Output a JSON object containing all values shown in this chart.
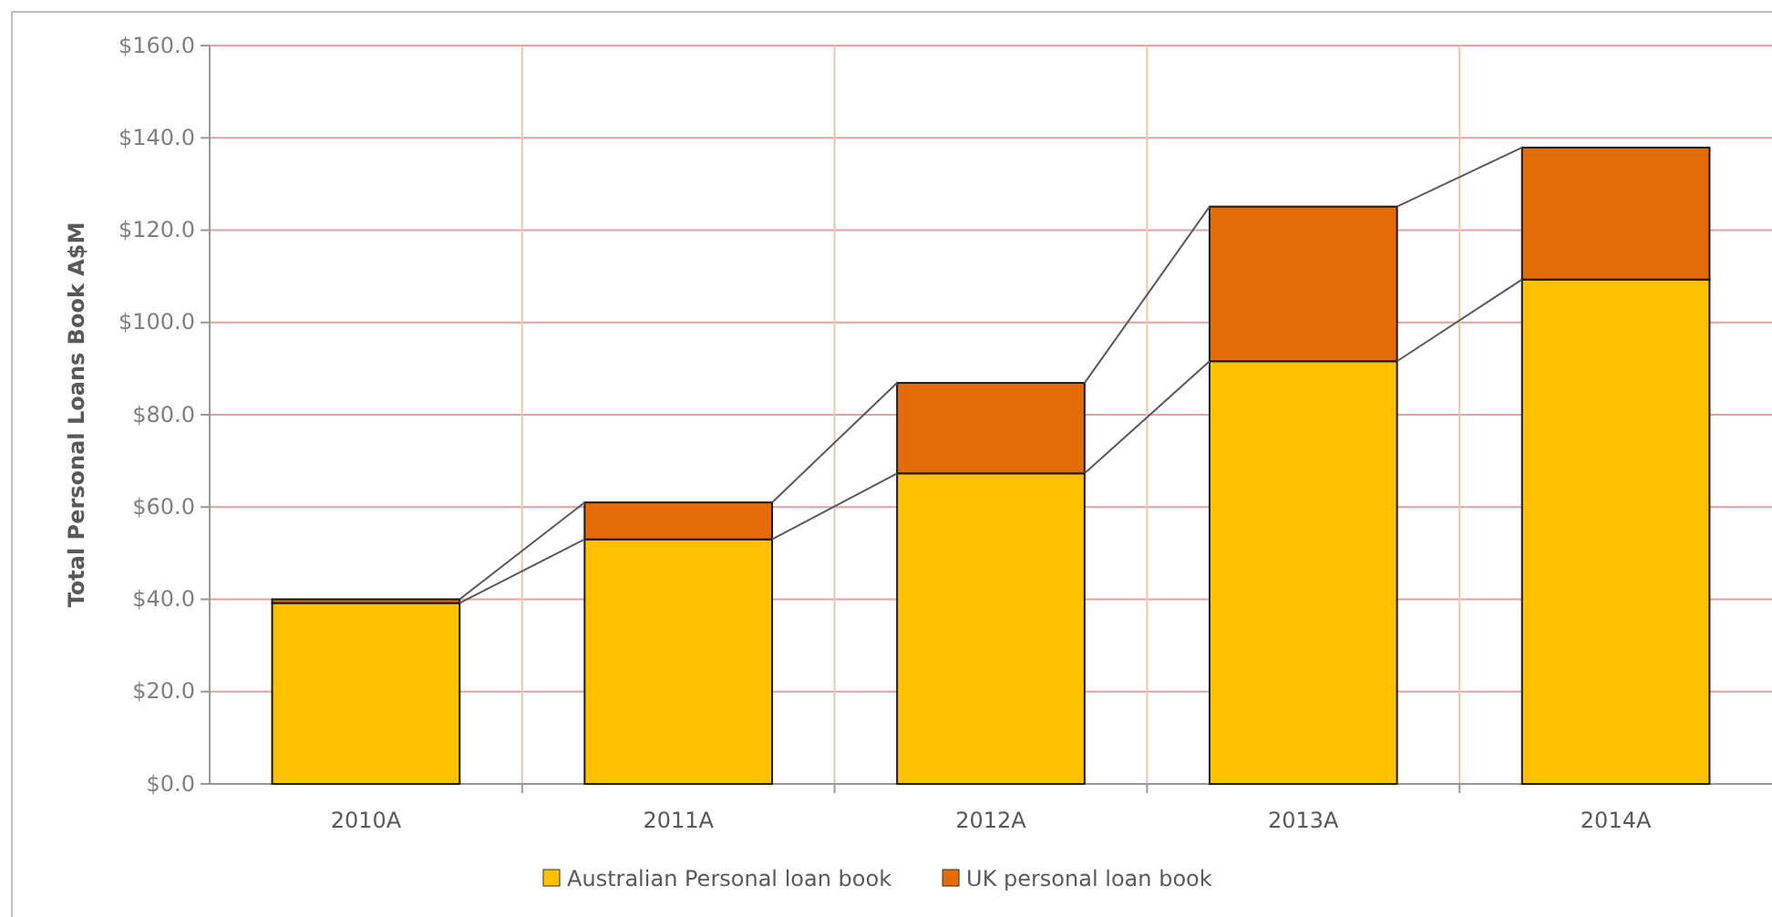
{
  "chart_data": {
    "type": "bar",
    "stacked": true,
    "ylabel": "Total Personal Loans Book A$M",
    "categories": [
      "2010A",
      "2011A",
      "2012A",
      "2013A",
      "2014A"
    ],
    "series": [
      {
        "name": "Australian Personal loan book",
        "color": "#ffc000",
        "values": [
          39.2,
          53.0,
          67.3,
          91.6,
          109.3
        ]
      },
      {
        "name": "UK personal loan book",
        "color": "#e36c09",
        "values": [
          0.8,
          8.0,
          19.6,
          33.5,
          28.6
        ]
      }
    ],
    "ylim": [
      0,
      160
    ],
    "yticks": [
      {
        "value": 0,
        "label": "$0.0"
      },
      {
        "value": 20,
        "label": "$20.0"
      },
      {
        "value": 40,
        "label": "$40.0"
      },
      {
        "value": 60,
        "label": "$60.0"
      },
      {
        "value": 80,
        "label": "$80.0"
      },
      {
        "value": 100,
        "label": "$100.0"
      },
      {
        "value": 120,
        "label": "$120.0"
      },
      {
        "value": 140,
        "label": "$140.0"
      },
      {
        "value": 160,
        "label": "$160.0"
      }
    ],
    "grid": true,
    "legend": "bottom"
  }
}
